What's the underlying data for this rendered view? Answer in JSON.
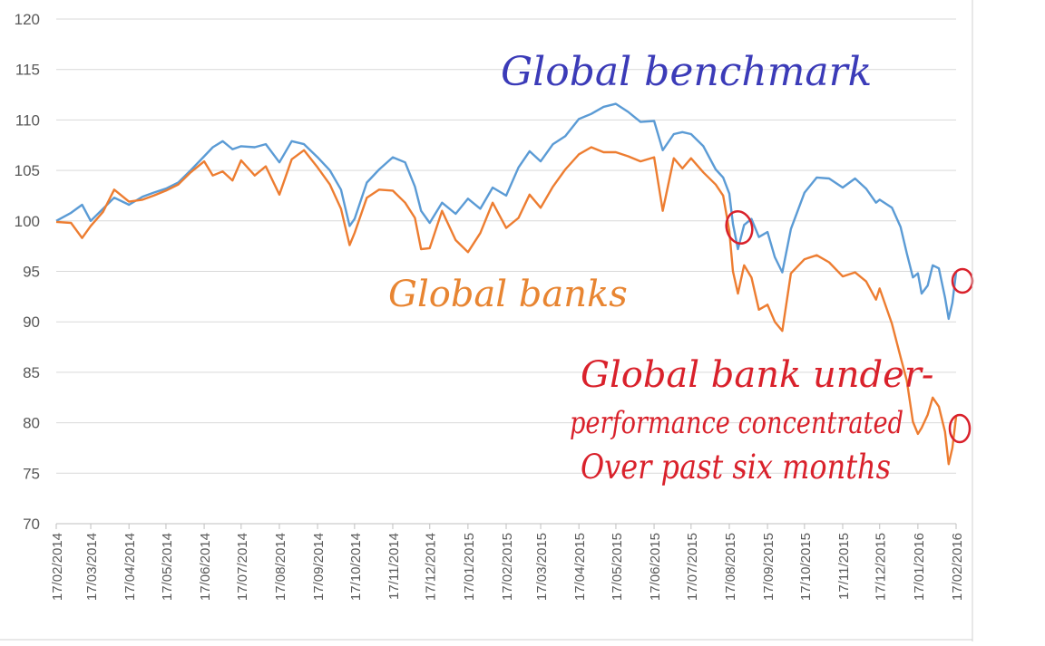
{
  "chart_data": {
    "type": "line",
    "title": "",
    "xlabel": "",
    "ylabel": "",
    "ylim": [
      70,
      120
    ],
    "yticks": [
      70,
      75,
      80,
      85,
      90,
      95,
      100,
      105,
      110,
      115,
      120
    ],
    "xlim": [
      "17/02/2014",
      "17/02/2016"
    ],
    "xticks": [
      "17/02/2014",
      "17/03/2014",
      "17/04/2014",
      "17/05/2014",
      "17/06/2014",
      "17/07/2014",
      "17/08/2014",
      "17/09/2014",
      "17/10/2014",
      "17/11/2014",
      "17/12/2014",
      "17/01/2015",
      "17/02/2015",
      "17/03/2015",
      "17/04/2015",
      "17/05/2015",
      "17/06/2015",
      "17/07/2015",
      "17/08/2015",
      "17/09/2015",
      "17/10/2015",
      "17/11/2015",
      "17/12/2015",
      "17/01/2016",
      "17/02/2016"
    ],
    "grid": true,
    "legend": "none",
    "series": [
      {
        "name": "Global benchmark",
        "color": "#5b9bd5",
        "x": [
          "17/02/2014",
          "01/03/2014",
          "10/03/2014",
          "17/03/2014",
          "27/03/2014",
          "05/04/2014",
          "17/04/2014",
          "28/04/2014",
          "07/05/2014",
          "17/05/2014",
          "27/05/2014",
          "06/06/2014",
          "17/06/2014",
          "24/06/2014",
          "02/07/2014",
          "10/07/2014",
          "17/07/2014",
          "28/07/2014",
          "06/08/2014",
          "17/08/2014",
          "27/08/2014",
          "06/09/2014",
          "17/09/2014",
          "27/09/2014",
          "06/10/2014",
          "13/10/2014",
          "17/10/2014",
          "27/10/2014",
          "06/11/2014",
          "17/11/2014",
          "27/11/2014",
          "05/12/2014",
          "10/12/2014",
          "17/12/2014",
          "27/12/2014",
          "07/01/2015",
          "17/01/2015",
          "27/01/2015",
          "06/02/2015",
          "17/02/2015",
          "27/02/2015",
          "08/03/2015",
          "17/03/2015",
          "27/03/2015",
          "06/04/2015",
          "17/04/2015",
          "27/04/2015",
          "07/05/2015",
          "17/05/2015",
          "27/05/2015",
          "06/06/2015",
          "17/06/2015",
          "24/06/2015",
          "03/07/2015",
          "10/07/2015",
          "17/07/2015",
          "27/07/2015",
          "06/08/2015",
          "12/08/2015",
          "17/08/2015",
          "20/08/2015",
          "24/08/2015",
          "29/08/2015",
          "04/09/2015",
          "10/09/2015",
          "17/09/2015",
          "23/09/2015",
          "29/09/2015",
          "06/10/2015",
          "17/10/2015",
          "27/10/2015",
          "06/11/2015",
          "17/11/2015",
          "27/11/2015",
          "06/12/2015",
          "14/12/2015",
          "17/12/2015",
          "27/12/2015",
          "03/01/2016",
          "08/01/2016",
          "13/01/2016",
          "17/01/2016",
          "20/01/2016",
          "25/01/2016",
          "29/01/2016",
          "03/02/2016",
          "08/02/2016",
          "11/02/2016",
          "14/02/2016",
          "17/02/2016"
        ],
        "values": [
          100.0,
          100.8,
          101.6,
          100.0,
          101.2,
          102.3,
          101.6,
          102.4,
          102.8,
          103.2,
          103.8,
          105.0,
          106.4,
          107.3,
          107.9,
          107.1,
          107.4,
          107.3,
          107.6,
          105.8,
          107.9,
          107.6,
          106.3,
          105.0,
          103.1,
          99.5,
          100.2,
          103.8,
          105.1,
          106.3,
          105.8,
          103.4,
          101.0,
          99.8,
          101.8,
          100.7,
          102.2,
          101.2,
          103.3,
          102.5,
          105.3,
          106.9,
          105.9,
          107.6,
          108.4,
          110.1,
          110.6,
          111.3,
          111.6,
          110.8,
          109.8,
          109.9,
          107.0,
          108.6,
          108.8,
          108.6,
          107.4,
          105.1,
          104.3,
          102.7,
          99.7,
          97.2,
          99.6,
          100.2,
          98.4,
          98.9,
          96.4,
          94.9,
          99.2,
          102.8,
          104.3,
          104.2,
          103.3,
          104.2,
          103.2,
          101.8,
          102.1,
          101.3,
          99.4,
          96.8,
          94.4,
          94.8,
          92.8,
          93.6,
          95.6,
          95.3,
          92.4,
          90.3,
          91.9,
          94.9
        ]
      },
      {
        "name": "Global banks",
        "color": "#ed7d31",
        "x": [
          "17/02/2014",
          "01/03/2014",
          "10/03/2014",
          "17/03/2014",
          "27/03/2014",
          "05/04/2014",
          "17/04/2014",
          "28/04/2014",
          "07/05/2014",
          "17/05/2014",
          "27/05/2014",
          "06/06/2014",
          "17/06/2014",
          "24/06/2014",
          "02/07/2014",
          "10/07/2014",
          "17/07/2014",
          "28/07/2014",
          "06/08/2014",
          "17/08/2014",
          "27/08/2014",
          "06/09/2014",
          "17/09/2014",
          "27/09/2014",
          "06/10/2014",
          "13/10/2014",
          "17/10/2014",
          "27/10/2014",
          "06/11/2014",
          "17/11/2014",
          "27/11/2014",
          "05/12/2014",
          "10/12/2014",
          "17/12/2014",
          "27/12/2014",
          "07/01/2015",
          "17/01/2015",
          "27/01/2015",
          "06/02/2015",
          "17/02/2015",
          "27/02/2015",
          "08/03/2015",
          "17/03/2015",
          "27/03/2015",
          "06/04/2015",
          "17/04/2015",
          "27/04/2015",
          "07/05/2015",
          "17/05/2015",
          "27/05/2015",
          "06/06/2015",
          "17/06/2015",
          "24/06/2015",
          "03/07/2015",
          "10/07/2015",
          "17/07/2015",
          "27/07/2015",
          "06/08/2015",
          "12/08/2015",
          "17/08/2015",
          "20/08/2015",
          "24/08/2015",
          "29/08/2015",
          "04/09/2015",
          "10/09/2015",
          "17/09/2015",
          "23/09/2015",
          "29/09/2015",
          "06/10/2015",
          "17/10/2015",
          "27/10/2015",
          "06/11/2015",
          "17/11/2015",
          "27/11/2015",
          "06/12/2015",
          "14/12/2015",
          "17/12/2015",
          "27/12/2015",
          "03/01/2016",
          "08/01/2016",
          "13/01/2016",
          "17/01/2016",
          "20/01/2016",
          "25/01/2016",
          "29/01/2016",
          "03/02/2016",
          "08/02/2016",
          "11/02/2016",
          "14/02/2016",
          "17/02/2016"
        ],
        "values": [
          99.9,
          99.8,
          98.3,
          99.5,
          100.9,
          103.1,
          101.9,
          102.1,
          102.5,
          103.0,
          103.6,
          104.8,
          105.9,
          104.5,
          104.9,
          104.0,
          106.0,
          104.5,
          105.4,
          102.6,
          106.1,
          107.0,
          105.3,
          103.6,
          101.2,
          97.6,
          98.8,
          102.3,
          103.1,
          103.0,
          101.8,
          100.3,
          97.2,
          97.3,
          101.0,
          98.1,
          96.9,
          98.8,
          101.8,
          99.3,
          100.3,
          102.6,
          101.3,
          103.4,
          105.1,
          106.6,
          107.3,
          106.8,
          106.8,
          106.4,
          105.9,
          106.3,
          101.0,
          106.2,
          105.2,
          106.2,
          104.8,
          103.6,
          102.5,
          99.0,
          95.0,
          92.8,
          95.6,
          94.4,
          91.2,
          91.7,
          90.0,
          89.1,
          94.8,
          96.2,
          96.6,
          95.9,
          94.5,
          94.9,
          94.0,
          92.2,
          93.3,
          89.8,
          86.5,
          84.2,
          80.1,
          78.9,
          79.5,
          80.8,
          82.5,
          81.6,
          79.1,
          75.9,
          77.5,
          80.6
        ]
      }
    ]
  },
  "annotations": {
    "benchmark_label": "Global benchmark",
    "banks_label": "Global banks",
    "note_line1": "Global bank under-",
    "note_line2": "performance concentrated",
    "note_line3": "Over past six months"
  },
  "colors": {
    "benchmark_ink": "#3b3bb8",
    "banks_ink": "#e88532",
    "note_ink": "#d9212b",
    "gridline": "#d9d9d9",
    "axis": "#bfbfbf"
  }
}
